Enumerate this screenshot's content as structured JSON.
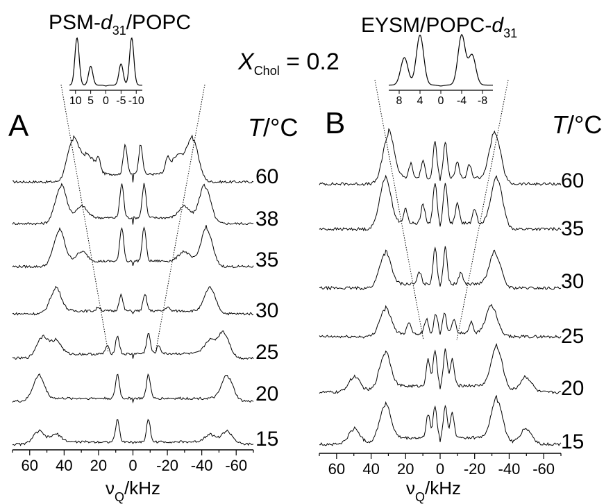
{
  "panels": [
    {
      "letter": "A",
      "title": {
        "main": "PSM-",
        "italic": "d",
        "sub": "31",
        "tail": "/POPC"
      },
      "temp_label": {
        "var": "T",
        "unit": "/°C"
      },
      "xlabel": {
        "main": "ν",
        "sub": "Q",
        "tail": "/kHz"
      },
      "xticks": [
        "60",
        "40",
        "20",
        "0",
        "-20",
        "-40",
        "-60"
      ],
      "inset_ticks": [
        "10",
        "5",
        "0",
        "-5",
        "-10"
      ]
    },
    {
      "letter": "B",
      "title": {
        "main": "EYSM/POPC-",
        "italic": "d",
        "sub": "31",
        "tail": ""
      },
      "temp_label": {
        "var": "T",
        "unit": "/°C"
      },
      "xlabel": {
        "main": "ν",
        "sub": "Q",
        "tail": "/kHz"
      },
      "xticks": [
        "60",
        "40",
        "20",
        "0",
        "-20",
        "-40",
        "-60"
      ],
      "inset_ticks": [
        "8",
        "4",
        "0",
        "-4",
        "-8"
      ]
    }
  ],
  "center_label": {
    "var": "X",
    "sub": "Chol",
    "rest": " = 0.2"
  },
  "chart_data": [
    {
      "type": "line",
      "description_source": "2H NMR spectra, panel A",
      "x_unit": "kHz",
      "xlim": [
        70,
        -70
      ],
      "xticks": [
        60,
        40,
        20,
        0,
        -20,
        -40,
        -60
      ],
      "series": [
        {
          "name": "60",
          "peaks": [
            {
              "x": 35,
              "h": 1.0
            },
            {
              "x": -35,
              "h": 1.0
            },
            {
              "x": 28,
              "h": 0.35
            },
            {
              "x": 24,
              "h": 0.25
            },
            {
              "x": 20,
              "h": 0.3
            },
            {
              "x": 4.5,
              "h": 0.75
            },
            {
              "x": -4.5,
              "h": 0.75
            },
            {
              "x": -20,
              "h": 0.3
            },
            {
              "x": -24,
              "h": 0.25
            },
            {
              "x": -28,
              "h": 0.35
            }
          ]
        },
        {
          "name": "38",
          "peaks": [
            {
              "x": 42,
              "h": 0.9
            },
            {
              "x": -42,
              "h": 0.9
            },
            {
              "x": 30,
              "h": 0.3
            },
            {
              "x": -30,
              "h": 0.3
            },
            {
              "x": 6.5,
              "h": 0.85
            },
            {
              "x": -6.5,
              "h": 0.85
            }
          ]
        },
        {
          "name": "35",
          "peaks": [
            {
              "x": 43,
              "h": 0.85
            },
            {
              "x": -43,
              "h": 0.9
            },
            {
              "x": 30,
              "h": 0.25
            },
            {
              "x": -30,
              "h": 0.25
            },
            {
              "x": 6.5,
              "h": 0.85
            },
            {
              "x": -6.5,
              "h": 0.85
            }
          ]
        },
        {
          "name": "30",
          "peaks": [
            {
              "x": 45,
              "h": 0.6
            },
            {
              "x": -45,
              "h": 0.6
            },
            {
              "x": 20,
              "h": 0.1
            },
            {
              "x": -20,
              "h": 0.1
            },
            {
              "x": 7,
              "h": 0.4
            },
            {
              "x": -7,
              "h": 0.4
            }
          ]
        },
        {
          "name": "25",
          "peaks": [
            {
              "x": 53,
              "h": 0.5
            },
            {
              "x": -53,
              "h": 0.6
            },
            {
              "x": 45,
              "h": 0.35
            },
            {
              "x": -45,
              "h": 0.35
            },
            {
              "x": 9,
              "h": 0.45
            },
            {
              "x": -9,
              "h": 0.5
            },
            {
              "x": 15,
              "h": 0.2
            },
            {
              "x": -15,
              "h": 0.2
            }
          ]
        },
        {
          "name": "20",
          "peaks": [
            {
              "x": 55,
              "h": 0.6
            },
            {
              "x": -55,
              "h": 0.6
            },
            {
              "x": 9,
              "h": 0.6
            },
            {
              "x": -9,
              "h": 0.6
            }
          ]
        },
        {
          "name": "15",
          "peaks": [
            {
              "x": 55,
              "h": 0.3
            },
            {
              "x": -55,
              "h": 0.3
            },
            {
              "x": 45,
              "h": 0.2
            },
            {
              "x": -45,
              "h": 0.2
            },
            {
              "x": 9,
              "h": 0.55
            },
            {
              "x": -9,
              "h": 0.55
            }
          ]
        }
      ],
      "inset": {
        "xlim": [
          12,
          -12
        ],
        "xticks": [
          10,
          5,
          0,
          -5,
          -10
        ],
        "peaks": [
          {
            "x": 9.5,
            "h": 1.0
          },
          {
            "x": 5,
            "h": 0.4
          },
          {
            "x": -5,
            "h": 0.45
          },
          {
            "x": -8.5,
            "h": 1.0
          }
        ]
      }
    },
    {
      "type": "line",
      "description_source": "2H NMR spectra, panel B",
      "x_unit": "kHz",
      "xlim": [
        70,
        -70
      ],
      "xticks": [
        60,
        40,
        20,
        0,
        -20,
        -40,
        -60
      ],
      "series": [
        {
          "name": "60",
          "peaks": [
            {
              "x": 30,
              "h": 1.0
            },
            {
              "x": -32,
              "h": 1.0
            },
            {
              "x": 3,
              "h": 0.75
            },
            {
              "x": -3,
              "h": 0.75
            },
            {
              "x": 10,
              "h": 0.35
            },
            {
              "x": -10,
              "h": 0.35
            },
            {
              "x": 17,
              "h": 0.3
            },
            {
              "x": -17,
              "h": 0.3
            }
          ]
        },
        {
          "name": "35",
          "peaks": [
            {
              "x": 32,
              "h": 1.0
            },
            {
              "x": -33,
              "h": 1.0
            },
            {
              "x": 3,
              "h": 0.85
            },
            {
              "x": -3,
              "h": 0.85
            },
            {
              "x": 10,
              "h": 0.4
            },
            {
              "x": -10,
              "h": 0.4
            },
            {
              "x": 20,
              "h": 0.3
            },
            {
              "x": -20,
              "h": 0.3
            }
          ]
        },
        {
          "name": "30",
          "peaks": [
            {
              "x": 32,
              "h": 0.7
            },
            {
              "x": -32,
              "h": 0.7
            },
            {
              "x": 3,
              "h": 0.75
            },
            {
              "x": -3,
              "h": 0.75
            },
            {
              "x": 12,
              "h": 0.25
            },
            {
              "x": -12,
              "h": 0.25
            }
          ]
        },
        {
          "name": "25",
          "peaks": [
            {
              "x": 32,
              "h": 0.55
            },
            {
              "x": -30,
              "h": 0.6
            },
            {
              "x": 2.5,
              "h": 0.4
            },
            {
              "x": -2.5,
              "h": 0.4
            },
            {
              "x": 8,
              "h": 0.3
            },
            {
              "x": -8,
              "h": 0.3
            },
            {
              "x": 18,
              "h": 0.25
            },
            {
              "x": -18,
              "h": 0.25
            }
          ]
        },
        {
          "name": "20",
          "peaks": [
            {
              "x": 32,
              "h": 0.75
            },
            {
              "x": -33,
              "h": 0.85
            },
            {
              "x": 3,
              "h": 0.75
            },
            {
              "x": -3,
              "h": 0.75
            },
            {
              "x": 7,
              "h": 0.55
            },
            {
              "x": -7,
              "h": 0.55
            },
            {
              "x": 50,
              "h": 0.3
            },
            {
              "x": -50,
              "h": 0.3
            }
          ]
        },
        {
          "name": "15",
          "peaks": [
            {
              "x": 32,
              "h": 0.75
            },
            {
              "x": -33,
              "h": 0.85
            },
            {
              "x": 3,
              "h": 0.65
            },
            {
              "x": -3,
              "h": 0.65
            },
            {
              "x": 7,
              "h": 0.5
            },
            {
              "x": -7,
              "h": 0.5
            },
            {
              "x": 50,
              "h": 0.3
            },
            {
              "x": -50,
              "h": 0.3
            }
          ]
        }
      ],
      "inset": {
        "xlim": [
          10,
          -10
        ],
        "xticks": [
          8,
          4,
          0,
          -4,
          -8
        ],
        "peaks": [
          {
            "x": 7,
            "h": 0.55
          },
          {
            "x": 4,
            "h": 1.0
          },
          {
            "x": -4,
            "h": 1.0
          },
          {
            "x": -6,
            "h": 0.6
          }
        ]
      }
    }
  ]
}
